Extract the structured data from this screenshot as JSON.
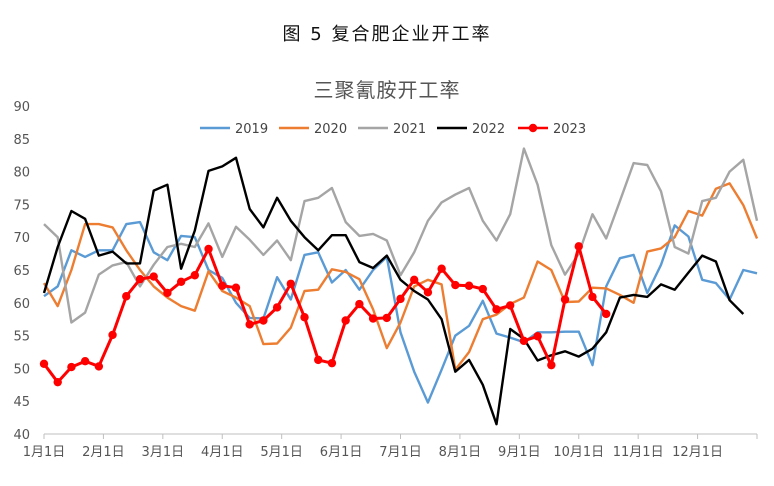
{
  "figure_title": "图 5 复合肥企业开工率",
  "chart_data": {
    "type": "line",
    "title": "三聚氰胺开工率",
    "xlabel": "",
    "ylabel": "",
    "ylim": [
      40,
      90
    ],
    "yticks": [
      40,
      45,
      50,
      55,
      60,
      65,
      70,
      75,
      80,
      85,
      90
    ],
    "x_tick_labels": [
      "1月1日",
      "2月1日",
      "3月1日",
      "4月1日",
      "5月1日",
      "6月1日",
      "7月1日",
      "8月1日",
      "9月1日",
      "10月1日",
      "11月1日",
      "12月1日"
    ],
    "x_unit": "week",
    "weeks_per_year": 52,
    "grid": false,
    "legend": "top",
    "series": [
      {
        "name": "2019",
        "color": "#5b9bd5",
        "values": [
          61,
          62.5,
          68,
          67,
          68,
          68,
          72,
          72.3,
          67.7,
          66.5,
          70.2,
          70,
          65,
          63.8,
          60,
          57.7,
          57.6,
          63.9,
          60.5,
          67.3,
          67.7,
          63.1,
          65,
          62,
          65,
          67,
          55.5,
          49.5,
          44.8,
          49.8,
          55,
          56.5,
          60.3,
          55.3,
          54.7,
          54,
          55.5,
          55.5,
          55.6,
          55.6,
          50.5,
          62.5,
          66.8,
          67.3,
          61.5,
          65.8,
          71.8,
          70.1,
          63.5,
          63,
          60.5,
          65,
          64.5
        ]
      },
      {
        "name": "2020",
        "color": "#ed7d31",
        "values": [
          63,
          59.5,
          65,
          72,
          72,
          71.5,
          68,
          65,
          62.5,
          60.8,
          59.5,
          58.8,
          64.8,
          61.8,
          60.8,
          59.5,
          53.7,
          53.8,
          56.2,
          61.8,
          62,
          65.1,
          64.7,
          63.6,
          59,
          53.1,
          57,
          62.5,
          63.5,
          62.8,
          49.8,
          52.5,
          57.5,
          58.2,
          59.8,
          60.8,
          66.3,
          65,
          60.1,
          60.2,
          62.3,
          62.2,
          61.2,
          60,
          67.8,
          68.3,
          70,
          74,
          73.3,
          77.4,
          78.2,
          74.9,
          69.8
        ]
      },
      {
        "name": "2021",
        "color": "#a5a5a5",
        "values": [
          72,
          70,
          57,
          58.5,
          64.3,
          65.7,
          66.2,
          62.5,
          65.8,
          68.5,
          69,
          68.5,
          72.1,
          67,
          71.6,
          69.6,
          67.3,
          69.5,
          66.5,
          75.5,
          76,
          77.5,
          72.3,
          70.2,
          70.5,
          69.5,
          64.2,
          67.7,
          72.5,
          75.3,
          76.5,
          77.5,
          72.5,
          69.5,
          73.5,
          83.5,
          78,
          68.8,
          64.3,
          67.5,
          73.5,
          69.8,
          75.5,
          81.3,
          81,
          77,
          68.5,
          67.5,
          75.5,
          76,
          80,
          81.8,
          72.5
        ]
      },
      {
        "name": "2022",
        "color": "#000000",
        "values": [
          61.5,
          68.5,
          74,
          72.8,
          67.2,
          67.8,
          66,
          66,
          77.1,
          78,
          65.2,
          71,
          80.1,
          80.8,
          82.1,
          74.3,
          71.5,
          76,
          72.5,
          70,
          68,
          70.3,
          70.3,
          66.2,
          65.3,
          67.2,
          63.5,
          61.8,
          60.5,
          57.5,
          49.5,
          51.3,
          47.5,
          41.5,
          56,
          54.5,
          51.2,
          52,
          52.6,
          51.8,
          53,
          55.5,
          60.8,
          61.2,
          60.9,
          62.8,
          62,
          64.6,
          67.2,
          66.3,
          60.4,
          58.3
        ]
      },
      {
        "name": "2023",
        "color": "#ff0000",
        "marker": "circle",
        "values": [
          50.7,
          47.9,
          50.2,
          51.1,
          50.3,
          55.1,
          61,
          63.6,
          64,
          61.5,
          63.2,
          64.2,
          68.2,
          62.6,
          62.3,
          56.7,
          57.3,
          59.3,
          62.9,
          57.8,
          51.3,
          50.8,
          57.3,
          59.8,
          57.6,
          57.7,
          60.6,
          63.5,
          61.6,
          65.2,
          62.7,
          62.6,
          62.1,
          59,
          59.6,
          54.2,
          54.9,
          50.5,
          60.5,
          68.6,
          60.9,
          58.3
        ]
      }
    ]
  }
}
